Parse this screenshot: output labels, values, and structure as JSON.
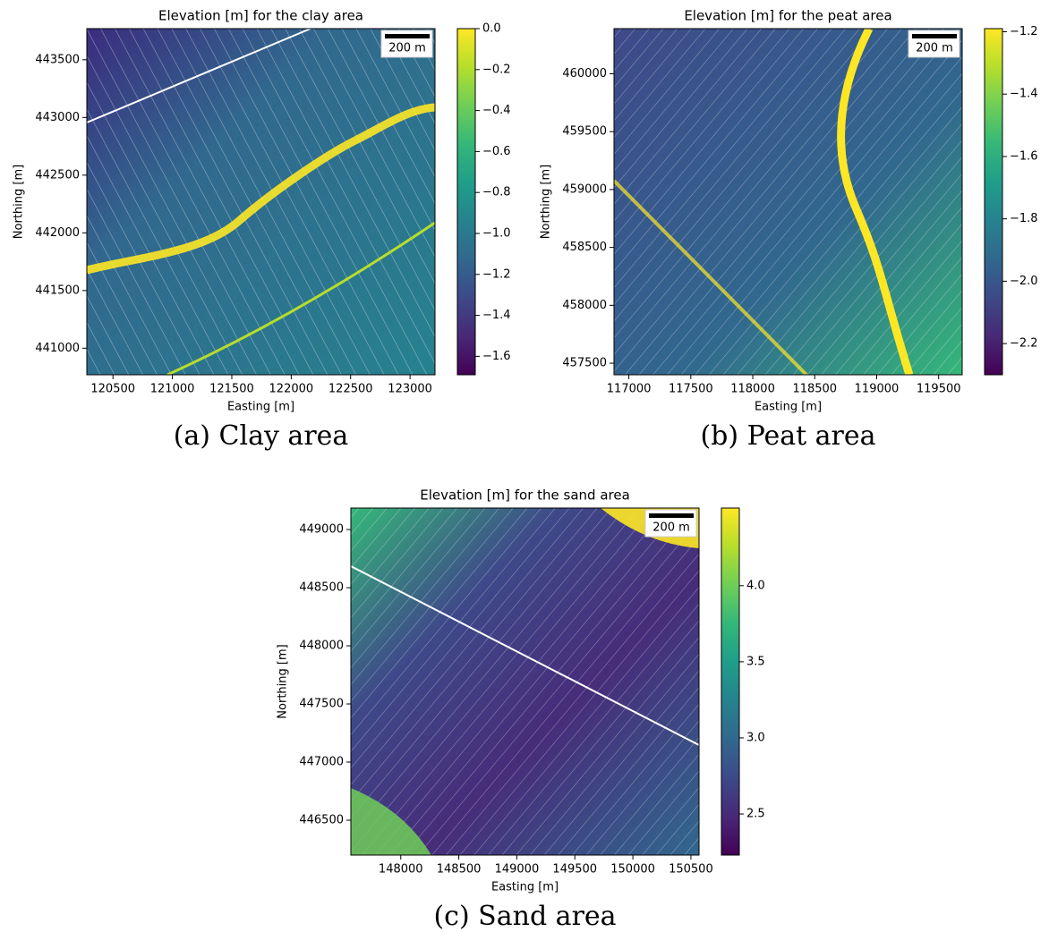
{
  "chart_data": [
    {
      "type": "raster",
      "title": "Elevation [m] for the clay area",
      "xlabel": "Easting [m]",
      "ylabel": "Northing [m]",
      "xlim": [
        120280,
        123210
      ],
      "xticks": [
        120500,
        121000,
        121500,
        122000,
        122500,
        123000
      ],
      "ylim": [
        440770,
        443770
      ],
      "yticks": [
        441000,
        441500,
        442000,
        442500,
        443000,
        443500
      ],
      "colormap": "viridis",
      "clim": [
        -1.69,
        0.0
      ],
      "cticks": [
        {
          "value": -1.6,
          "label": "−1.6"
        },
        {
          "value": -1.4,
          "label": "−1.4"
        },
        {
          "value": -1.2,
          "label": "−1.2"
        },
        {
          "value": -1.0,
          "label": "−1.0"
        },
        {
          "value": -0.8,
          "label": "−0.8"
        },
        {
          "value": -0.6,
          "label": "−0.6"
        },
        {
          "value": -0.4,
          "label": "−0.4"
        },
        {
          "value": -0.2,
          "label": "−0.2"
        },
        {
          "value": 0.0,
          "label": "0.0"
        }
      ],
      "scalebar_label": "200 m",
      "caption": "(a) Clay area"
    },
    {
      "type": "raster",
      "title": "Elevation [m] for the peat area",
      "xlabel": "Easting [m]",
      "ylabel": "Northing [m]",
      "xlim": [
        116880,
        119690
      ],
      "xticks": [
        117000,
        117500,
        118000,
        118500,
        119000,
        119500
      ],
      "ylim": [
        457400,
        460390
      ],
      "yticks": [
        457500,
        458000,
        458500,
        459000,
        459500,
        460000
      ],
      "colormap": "viridis",
      "clim": [
        -2.3,
        -1.19
      ],
      "cticks": [
        {
          "value": -2.2,
          "label": "−2.2"
        },
        {
          "value": -2.0,
          "label": "−2.0"
        },
        {
          "value": -1.8,
          "label": "−1.8"
        },
        {
          "value": -1.6,
          "label": "−1.6"
        },
        {
          "value": -1.4,
          "label": "−1.4"
        },
        {
          "value": -1.2,
          "label": "−1.2"
        }
      ],
      "scalebar_label": "200 m",
      "caption": "(b) Peat area"
    },
    {
      "type": "raster",
      "title": "Elevation [m] for the sand area",
      "xlabel": "Easting [m]",
      "ylabel": "Northing [m]",
      "xlim": [
        147570,
        150570
      ],
      "xticks": [
        148000,
        148500,
        149000,
        149500,
        150000,
        150500
      ],
      "ylim": [
        446200,
        449185
      ],
      "yticks": [
        446500,
        447000,
        447500,
        448000,
        448500,
        449000
      ],
      "colormap": "viridis",
      "clim": [
        2.23,
        4.51
      ],
      "cticks": [
        2.5,
        {
          "value": 3.0,
          "label": "3.0"
        },
        3.5,
        {
          "value": 4.0,
          "label": "4.0"
        }
      ],
      "scalebar_label": "200 m",
      "caption": "(c) Sand area"
    }
  ]
}
